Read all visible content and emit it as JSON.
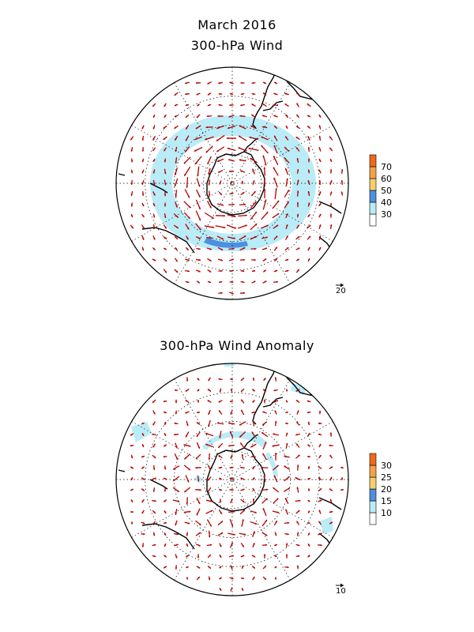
{
  "title": "March 2016",
  "panels": [
    {
      "title": "300-hPa Wind",
      "reference_vector_label": "20",
      "colorbar": {
        "ticks": [
          "30",
          "40",
          "50",
          "60",
          "70"
        ],
        "colors": [
          "#ffffff",
          "#b9ecf7",
          "#4e8fe0",
          "#f6cf6a",
          "#f4a24a",
          "#ee6a1c"
        ]
      }
    },
    {
      "title": "300-hPa Wind Anomaly",
      "reference_vector_label": "10",
      "colorbar": {
        "ticks": [
          "10",
          "15",
          "20",
          "25",
          "30"
        ],
        "colors": [
          "#ffffff",
          "#b9ecf7",
          "#4e8fe0",
          "#f6cf6a",
          "#f4a24a",
          "#ee6a1c"
        ]
      }
    }
  ],
  "map": {
    "projection": "south polar stereographic",
    "vector_color": "#b30000",
    "shading_color": "#b9ecf7",
    "coast_color": "#000000"
  }
}
